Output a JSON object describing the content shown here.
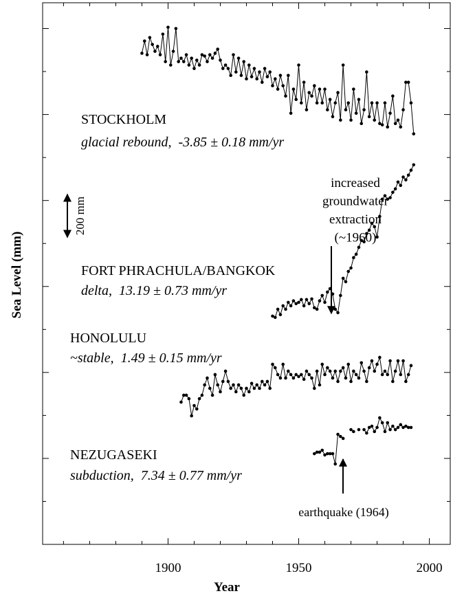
{
  "chart_data": {
    "type": "line",
    "xlabel": "Year",
    "ylabel": "Sea Level (mm)",
    "xlim": [
      1852,
      2008
    ],
    "xticks": [
      1900,
      1950,
      2000
    ],
    "xminorticks": [
      1860,
      1870,
      1880,
      1890,
      1910,
      1920,
      1930,
      1940,
      1960,
      1970,
      1980,
      1990
    ],
    "ylim": [
      0,
      2520
    ],
    "yticks": [
      200,
      400,
      600,
      800,
      1000,
      1200,
      1400,
      1600,
      1800,
      2000,
      2200,
      2400
    ],
    "scale_bar": {
      "value": 200,
      "label": "200 mm"
    },
    "series": [
      {
        "name": "STOCKHOLM",
        "description": "glacial rebound,  -3.85 ± 0.18 mm/yr",
        "color": "#000000",
        "x": [
          1890,
          1891,
          1892,
          1893,
          1894,
          1895,
          1896,
          1897,
          1898,
          1899,
          1900,
          1901,
          1902,
          1903,
          1904,
          1905,
          1906,
          1907,
          1908,
          1909,
          1910,
          1911,
          1912,
          1913,
          1914,
          1915,
          1916,
          1917,
          1918,
          1919,
          1920,
          1921,
          1922,
          1923,
          1924,
          1925,
          1926,
          1927,
          1928,
          1929,
          1930,
          1931,
          1932,
          1933,
          1934,
          1935,
          1936,
          1937,
          1938,
          1939,
          1940,
          1941,
          1942,
          1943,
          1944,
          1945,
          1946,
          1947,
          1948,
          1949,
          1950,
          1951,
          1952,
          1953,
          1954,
          1955,
          1956,
          1957,
          1958,
          1959,
          1960,
          1961,
          1962,
          1963,
          1964,
          1965,
          1966,
          1967,
          1968,
          1969,
          1970,
          1971,
          1972,
          1973,
          1974,
          1975,
          1976,
          1977,
          1978,
          1979,
          1980,
          1981,
          1982,
          1983,
          1984,
          1985,
          1986,
          1987,
          1988,
          1989,
          1990,
          1991,
          1992,
          1993,
          1994
        ],
        "values": [
          2285,
          2342,
          2278,
          2358,
          2326,
          2294,
          2317,
          2278,
          2374,
          2246,
          2406,
          2230,
          2294,
          2400,
          2246,
          2262,
          2246,
          2278,
          2230,
          2262,
          2214,
          2253,
          2230,
          2278,
          2272,
          2246,
          2278,
          2262,
          2285,
          2304,
          2253,
          2214,
          2230,
          2214,
          2182,
          2278,
          2198,
          2262,
          2182,
          2246,
          2166,
          2230,
          2176,
          2214,
          2166,
          2198,
          2150,
          2214,
          2176,
          2198,
          2134,
          2166,
          2118,
          2182,
          2134,
          2086,
          2182,
          2006,
          2118,
          2070,
          2230,
          2054,
          2150,
          2022,
          2102,
          2086,
          2134,
          2054,
          2118,
          2054,
          2118,
          2022,
          2070,
          1990,
          2054,
          2102,
          1974,
          2230,
          2022,
          2054,
          1974,
          2118,
          2006,
          2070,
          1958,
          2022,
          2198,
          1990,
          2054,
          1974,
          2054,
          1958,
          1952,
          2054,
          1942,
          2006,
          2086,
          1958,
          1974,
          1942,
          2022,
          2150,
          2150,
          2054,
          1910
        ]
      },
      {
        "name": "FORT PHRACHULA/BANGKOK",
        "description": "delta,  13.19 ± 0.73 mm/yr",
        "color": "#000000",
        "x": [
          1940,
          1941,
          1942,
          1943,
          1944,
          1945,
          1946,
          1947,
          1948,
          1949,
          1950,
          1951,
          1952,
          1953,
          1954,
          1955,
          1956,
          1957,
          1958,
          1959,
          1960,
          1961,
          1962,
          1963,
          1964,
          1965,
          1966,
          1967,
          1968,
          1969,
          1970,
          1971,
          1972,
          1973,
          1974,
          1975,
          1976,
          1977,
          1978,
          1979,
          1980,
          1981,
          1982,
          1983,
          1984,
          1985,
          1986,
          1987,
          1988,
          1989,
          1990,
          1991,
          1992,
          1993,
          1994
        ],
        "values": [
          1062,
          1056,
          1094,
          1069,
          1110,
          1094,
          1126,
          1110,
          1133,
          1120,
          1126,
          1139,
          1110,
          1139,
          1120,
          1142,
          1101,
          1094,
          1133,
          1158,
          1126,
          1174,
          1190,
          1165,
          1094,
          1078,
          1158,
          1238,
          1222,
          1270,
          1286,
          1334,
          1350,
          1382,
          1414,
          1408,
          1446,
          1462,
          1494,
          1478,
          1430,
          1526,
          1606,
          1622,
          1606,
          1613,
          1638,
          1654,
          1686,
          1670,
          1709,
          1696,
          1718,
          1741,
          1766
        ]
      },
      {
        "name": "HONOLULU",
        "description": "~stable,  1.49 ± 0.15 mm/yr",
        "color": "#000000",
        "x": [
          1905,
          1906,
          1907,
          1908,
          1909,
          1910,
          1911,
          1912,
          1913,
          1914,
          1915,
          1916,
          1917,
          1918,
          1919,
          1920,
          1921,
          1922,
          1923,
          1924,
          1925,
          1926,
          1927,
          1928,
          1929,
          1930,
          1931,
          1932,
          1933,
          1934,
          1935,
          1936,
          1937,
          1938,
          1939,
          1940,
          1941,
          1942,
          1943,
          1944,
          1945,
          1946,
          1947,
          1948,
          1949,
          1950,
          1951,
          1952,
          1953,
          1954,
          1955,
          1956,
          1957,
          1958,
          1959,
          1960,
          1961,
          1962,
          1963,
          1964,
          1965,
          1966,
          1967,
          1968,
          1969,
          1970,
          1971,
          1972,
          1973,
          1974,
          1975,
          1976,
          1977,
          1978,
          1979,
          1980,
          1981,
          1982,
          1983,
          1984,
          1985,
          1986,
          1987,
          1988,
          1989,
          1990,
          1991,
          1992,
          1993
        ],
        "values": [
          662,
          694,
          694,
          678,
          598,
          646,
          630,
          678,
          694,
          742,
          774,
          726,
          694,
          790,
          742,
          710,
          758,
          806,
          758,
          726,
          742,
          710,
          742,
          726,
          694,
          726,
          710,
          749,
          726,
          742,
          726,
          758,
          742,
          758,
          726,
          838,
          822,
          790,
          774,
          838,
          774,
          806,
          790,
          774,
          790,
          781,
          790,
          768,
          806,
          790,
          774,
          726,
          806,
          742,
          838,
          790,
          822,
          806,
          774,
          806,
          758,
          806,
          822,
          774,
          838,
          758,
          806,
          790,
          774,
          845,
          806,
          758,
          822,
          854,
          806,
          838,
          870,
          790,
          806,
          790,
          854,
          758,
          806,
          854,
          790,
          854,
          758,
          790,
          832
        ]
      },
      {
        "name": "NEZUGASEKI",
        "description": "subduction,  7.34 ± 0.77 mm/yr",
        "color": "#000000",
        "x": [
          1956,
          1957,
          1958,
          1959,
          1960,
          1961,
          1962,
          1963,
          1964,
          1965,
          1966,
          1967,
          1968,
          1969,
          1970,
          1971,
          1972,
          1973,
          1974,
          1975,
          1976,
          1977,
          1978,
          1979,
          1980,
          1981,
          1982,
          1983,
          1984,
          1985,
          1986,
          1987,
          1988,
          1989,
          1990,
          1991,
          1992,
          1993
        ],
        "values": [
          422,
          429,
          429,
          438,
          416,
          422,
          422,
          422,
          374,
          512,
          502,
          493,
          null,
          null,
          534,
          525,
          null,
          534,
          null,
          534,
          518,
          544,
          550,
          525,
          544,
          589,
          566,
          525,
          566,
          534,
          550,
          534,
          544,
          557,
          544,
          550,
          544,
          544
        ]
      }
    ],
    "annotations": [
      {
        "lines": [
          "increased",
          "groundwater",
          "extraction",
          "(~1960)"
        ]
      },
      {
        "lines": [
          "earthquake (1964)"
        ]
      }
    ]
  }
}
